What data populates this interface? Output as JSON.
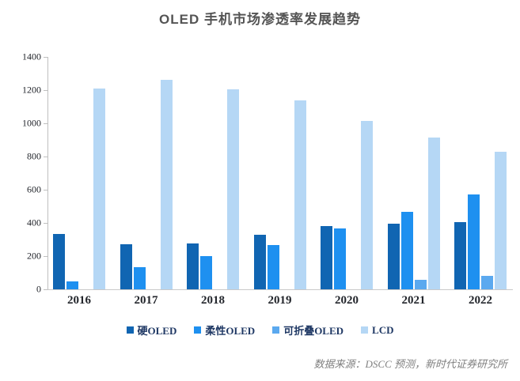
{
  "title": "OLED 手机市场渗透率发展趋势",
  "source": "数据来源：DSCC 预测，新时代证券研究所",
  "chart_data": {
    "type": "bar",
    "title": "OLED 手机市场渗透率发展趋势",
    "categories": [
      "2016",
      "2017",
      "2018",
      "2019",
      "2020",
      "2021",
      "2022"
    ],
    "series": [
      {
        "name": "硬OLED",
        "color": "#1065B2",
        "values": [
          335,
          270,
          275,
          330,
          380,
          395,
          405
        ]
      },
      {
        "name": "柔性OLED",
        "color": "#1E90F0",
        "values": [
          48,
          135,
          200,
          265,
          365,
          465,
          570
        ]
      },
      {
        "name": "可折叠OLED",
        "color": "#5BA9EF",
        "values": [
          0,
          0,
          0,
          0,
          0,
          55,
          80
        ]
      },
      {
        "name": "LCD",
        "color": "#B5D7F5",
        "values": [
          1210,
          1260,
          1205,
          1140,
          1015,
          915,
          830
        ]
      }
    ],
    "ylim": [
      0,
      1400
    ],
    "yticks": [
      0,
      200,
      400,
      600,
      800,
      1000,
      1200,
      1400
    ],
    "xlabel": "",
    "ylabel": "",
    "grid": false,
    "legend_position": "bottom",
    "axis_color": "#bfbfbf"
  }
}
